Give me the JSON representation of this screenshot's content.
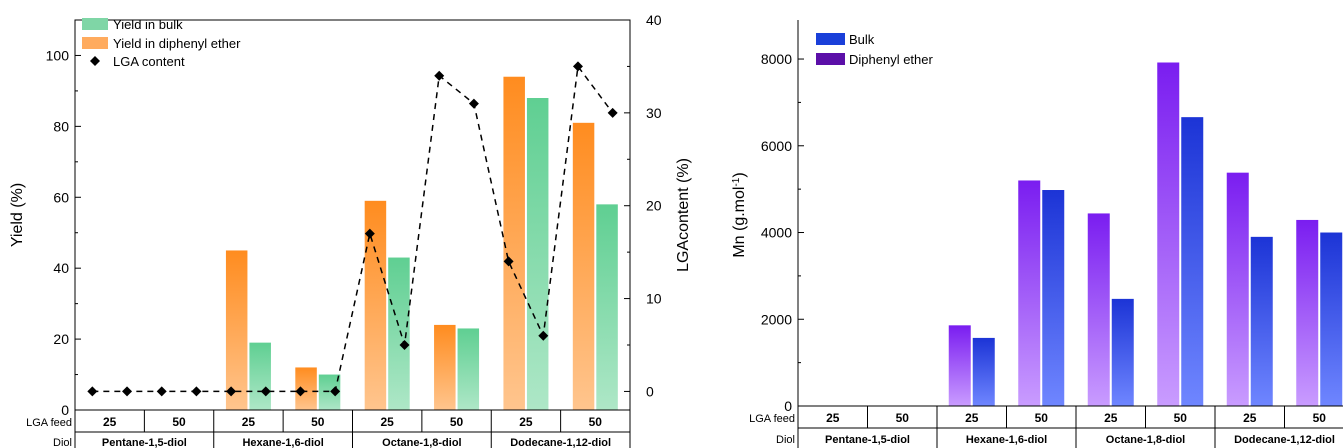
{
  "chart_data": [
    {
      "type": "bar",
      "ylabel": "Yield (%)",
      "y2label": "LGAcontent (%)",
      "ylim": [
        0,
        110
      ],
      "y2lim": [
        -2,
        40
      ],
      "yticks": [
        0,
        20,
        40,
        60,
        80,
        100
      ],
      "y2ticks": [
        0,
        10,
        20,
        30,
        40
      ],
      "legend_position": "top-left",
      "row_labels": {
        "feed": "LGA feed",
        "diol": "Diol"
      },
      "categories": [
        "25",
        "50",
        "25",
        "50",
        "25",
        "50",
        "25",
        "50"
      ],
      "groups": [
        {
          "name": "Pentane-1,5-diol",
          "span": 2
        },
        {
          "name": "Hexane-1,6-diol",
          "span": 2
        },
        {
          "name": "Octane-1,8-diol",
          "span": 2
        },
        {
          "name": "Dodecane-1,12-diol",
          "span": 2
        }
      ],
      "series": [
        {
          "name": "Yield in bulk",
          "kind": "bar",
          "color": "#7fd6a6",
          "values": [
            0,
            0,
            19,
            10,
            43,
            23,
            88,
            58
          ]
        },
        {
          "name": "Yield in diphenyl ether",
          "kind": "bar",
          "color": "#ff9a3c",
          "values": [
            0,
            0,
            45,
            12,
            59,
            24,
            94,
            81
          ]
        },
        {
          "name": "LGA content",
          "kind": "line",
          "axis": "right",
          "color": "#000000",
          "x": [
            0.125,
            0.375,
            0.625,
            0.875,
            1.125,
            1.375,
            1.625,
            1.875,
            2.125,
            2.375,
            2.625,
            2.875,
            3.125,
            3.375,
            3.625,
            3.875
          ],
          "values": [
            0,
            0,
            0,
            0,
            0,
            0,
            0,
            0,
            17,
            5,
            34,
            31,
            14,
            6,
            35,
            30
          ]
        }
      ]
    },
    {
      "type": "bar",
      "ylabel_main": "Mn (g.mol",
      "ylabel_sup": "-1",
      "ylabel_close": ")",
      "ylim": [
        0,
        8900
      ],
      "yticks": [
        0,
        2000,
        4000,
        6000,
        8000
      ],
      "legend_position": "top-left",
      "row_labels": {
        "feed": "LGA feed",
        "diol": "Diol"
      },
      "categories": [
        "25",
        "50",
        "25",
        "50",
        "25",
        "50",
        "25",
        "50"
      ],
      "groups": [
        {
          "name": "Pentane-1,5-diol",
          "span": 2
        },
        {
          "name": "Hexane-1,6-diol",
          "span": 2
        },
        {
          "name": "Octane-1,8-diol",
          "span": 2
        },
        {
          "name": "Dodecane-1,12-diol",
          "span": 2
        }
      ],
      "series": [
        {
          "name": "Bulk",
          "color": "#1a3fd9",
          "values": [
            0,
            0,
            1570,
            4980,
            2470,
            6660,
            3900,
            4000
          ]
        },
        {
          "name": "Diphenyl ether",
          "color": "#8a2be2",
          "values": [
            0,
            0,
            1860,
            5200,
            4440,
            7920,
            5380,
            4290
          ]
        }
      ]
    }
  ]
}
